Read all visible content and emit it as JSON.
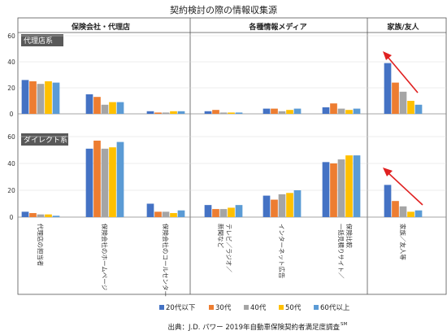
{
  "chart_data": {
    "type": "bar",
    "title": "契約検討の際の情報収集源",
    "groups": [
      "保険会社・代理店",
      "各種情報メディア",
      "家族/友人"
    ],
    "categories": [
      "代理店の担当者",
      "保険会社のホームページ",
      "保険会社のコールセンター",
      "テレビ／ラジオ／新聞など",
      "インターネット広告",
      "一括見積りサイト／保険比較",
      "家族／友人等"
    ],
    "series_names": [
      "20代以下",
      "30代",
      "40代",
      "50代",
      "60代以上"
    ],
    "colors": [
      "#4472C4",
      "#ED7D31",
      "#A5A5A5",
      "#FFC000",
      "#5B9BD5"
    ],
    "panels": [
      {
        "label": "代理店系",
        "ylim": [
          0,
          60
        ],
        "yticks": [
          "0",
          "20",
          "40",
          "60"
        ],
        "values": [
          [
            26,
            25,
            23,
            25,
            24
          ],
          [
            15,
            13,
            7,
            9,
            9
          ],
          [
            2,
            1,
            1,
            2,
            2
          ],
          [
            2,
            3,
            1,
            1,
            1
          ],
          [
            4,
            4,
            2,
            3,
            4
          ],
          [
            5,
            8,
            4,
            3,
            4
          ],
          [
            39,
            24,
            17,
            10,
            7
          ]
        ]
      },
      {
        "label": "ダイレクト系",
        "ylim": [
          0,
          60
        ],
        "yticks": [
          "0",
          "20",
          "40",
          "60"
        ],
        "values": [
          [
            4,
            3,
            2,
            2,
            1
          ],
          [
            51,
            57,
            51,
            52,
            56
          ],
          [
            10,
            4,
            4,
            3,
            5
          ],
          [
            9,
            6,
            6,
            7,
            9
          ],
          [
            16,
            13,
            17,
            18,
            20
          ],
          [
            41,
            40,
            43,
            46,
            46
          ],
          [
            24,
            12,
            8,
            4,
            5
          ]
        ]
      }
    ],
    "legend_position": "bottom",
    "source": "出典：J.D. パワー 2019年自動車保険契約者満足度調査",
    "source_mark": "SM"
  }
}
